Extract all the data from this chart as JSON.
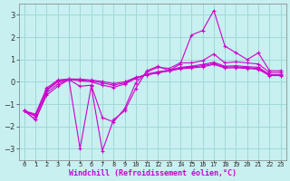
{
  "xlabel": "Windchill (Refroidissement éolien,°C)",
  "background_color": "#c8f0f0",
  "grid_color": "#a0d8d8",
  "line_color": "#cc00cc",
  "xlim": [
    -0.5,
    23.5
  ],
  "ylim": [
    -3.5,
    3.5
  ],
  "yticks": [
    -3,
    -2,
    -1,
    0,
    1,
    2,
    3
  ],
  "xticks": [
    0,
    1,
    2,
    3,
    4,
    5,
    6,
    7,
    8,
    9,
    10,
    11,
    12,
    13,
    14,
    15,
    16,
    17,
    18,
    19,
    20,
    21,
    22,
    23
  ],
  "xtick_labels": [
    "0",
    "1",
    "2",
    "3",
    "4",
    "5",
    "6",
    "7",
    "8",
    "9",
    "10",
    "11",
    "12",
    "13",
    "14",
    "15",
    "16",
    "17",
    "18",
    "19",
    "20",
    "21",
    "22",
    "23"
  ],
  "series": [
    {
      "x": [
        0,
        1,
        2,
        3,
        4,
        5,
        6,
        7,
        8,
        9,
        10,
        11,
        12,
        13,
        14,
        15,
        16,
        17,
        18,
        19,
        20,
        21,
        22,
        23
      ],
      "y": [
        -1.3,
        -1.7,
        -0.6,
        -0.2,
        0.1,
        -3.0,
        -0.2,
        -3.1,
        -1.7,
        -1.3,
        -0.3,
        0.5,
        0.7,
        0.5,
        0.8,
        2.1,
        2.3,
        3.2,
        1.6,
        1.3,
        1.0,
        1.3,
        0.5,
        0.5
      ]
    },
    {
      "x": [
        0,
        1,
        2,
        3,
        4,
        5,
        6,
        7,
        8,
        9,
        10,
        11,
        12,
        13,
        14,
        15,
        16,
        17,
        18,
        19,
        20,
        21,
        22,
        23
      ],
      "y": [
        -1.3,
        -1.7,
        -0.5,
        -0.1,
        0.1,
        -0.2,
        -0.15,
        -1.6,
        -1.8,
        -1.2,
        -0.05,
        0.45,
        0.65,
        0.6,
        0.85,
        0.85,
        0.95,
        1.25,
        0.85,
        0.9,
        0.85,
        0.8,
        0.42,
        0.42
      ]
    },
    {
      "x": [
        0,
        1,
        2,
        3,
        4,
        5,
        6,
        7,
        8,
        9,
        10,
        11,
        12,
        13,
        14,
        15,
        16,
        17,
        18,
        19,
        20,
        21,
        22,
        23
      ],
      "y": [
        -1.3,
        -1.55,
        -0.4,
        0.0,
        0.1,
        0.05,
        0.0,
        -0.15,
        -0.25,
        -0.1,
        0.15,
        0.35,
        0.45,
        0.52,
        0.65,
        0.7,
        0.78,
        0.88,
        0.7,
        0.72,
        0.68,
        0.65,
        0.33,
        0.33
      ]
    },
    {
      "x": [
        0,
        1,
        2,
        3,
        4,
        5,
        6,
        7,
        8,
        9,
        10,
        11,
        12,
        13,
        14,
        15,
        16,
        17,
        18,
        19,
        20,
        21,
        22,
        23
      ],
      "y": [
        -1.3,
        -1.5,
        -0.35,
        0.05,
        0.12,
        0.1,
        0.05,
        -0.05,
        -0.15,
        -0.05,
        0.18,
        0.32,
        0.42,
        0.5,
        0.62,
        0.66,
        0.72,
        0.82,
        0.66,
        0.67,
        0.63,
        0.6,
        0.3,
        0.3
      ]
    },
    {
      "x": [
        0,
        1,
        2,
        3,
        4,
        5,
        6,
        7,
        8,
        9,
        10,
        11,
        12,
        13,
        14,
        15,
        16,
        17,
        18,
        19,
        20,
        21,
        22,
        23
      ],
      "y": [
        -1.3,
        -1.45,
        -0.28,
        0.08,
        0.13,
        0.12,
        0.08,
        0.02,
        -0.08,
        0.0,
        0.2,
        0.31,
        0.4,
        0.49,
        0.58,
        0.62,
        0.67,
        0.78,
        0.62,
        0.63,
        0.6,
        0.56,
        0.28,
        0.28
      ]
    }
  ]
}
